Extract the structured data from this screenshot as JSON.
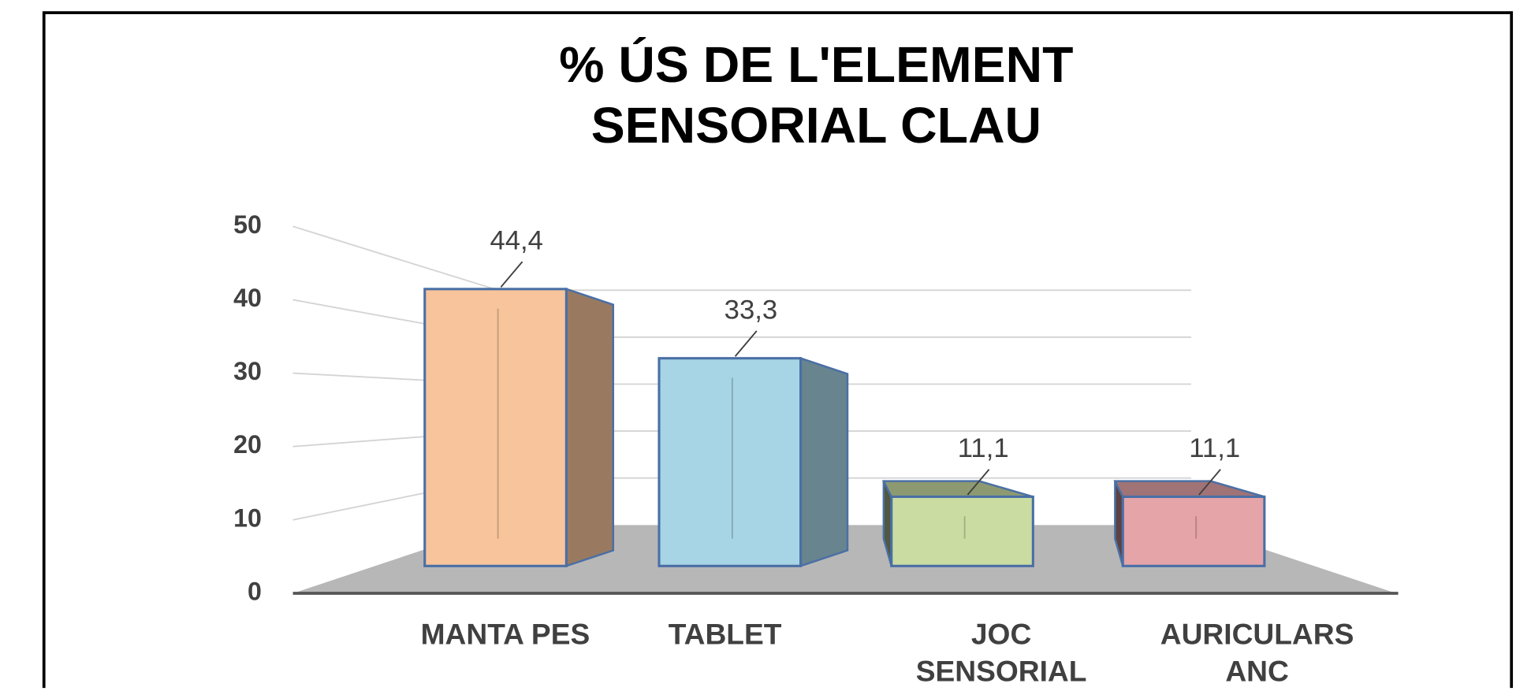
{
  "chart_data": {
    "type": "bar3d",
    "title": "% ÚS DE L'ELEMENT SENSORIAL CLAU",
    "categories": [
      "MANTA PES",
      "TABLET",
      "JOC SENSORIAL",
      "AURICULARS ANC"
    ],
    "values": [
      44.4,
      33.3,
      11.1,
      11.1
    ],
    "value_labels": [
      "44,4",
      "33,3",
      "11,1",
      "11,1"
    ],
    "colors": [
      "#f7c49c",
      "#a7d5e5",
      "#cadca2",
      "#e5a4a8"
    ],
    "ylim": [
      0,
      50
    ],
    "yticks": [
      0,
      10,
      20,
      30,
      40,
      50
    ],
    "grid": true
  }
}
